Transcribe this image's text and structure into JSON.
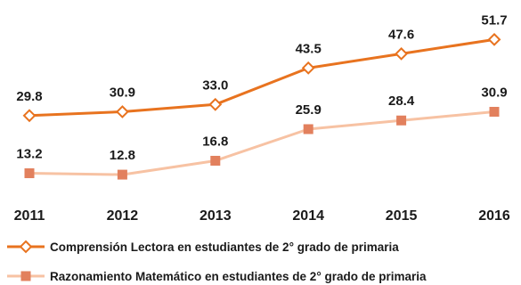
{
  "chart_data": {
    "type": "line",
    "title": "",
    "xlabel": "",
    "ylabel": "",
    "x": [
      "2011",
      "2012",
      "2013",
      "2014",
      "2015",
      "2016"
    ],
    "ylim": [
      0,
      60
    ],
    "grid": false,
    "legend_position": "bottom",
    "series": [
      {
        "name": "Comprensión Lectora en estudiantes de 2° grado de primaria",
        "values": [
          29.8,
          30.9,
          33.0,
          43.5,
          47.6,
          51.7
        ],
        "labels": [
          "29.8",
          "30.9",
          "33.0",
          "43.5",
          "47.6",
          "51.7"
        ],
        "color": "#e8731f",
        "marker": "diamond"
      },
      {
        "name": "Razonamiento Matemático en estudiantes de 2° grado de primaria",
        "values": [
          13.2,
          12.8,
          16.8,
          25.9,
          28.4,
          30.9
        ],
        "labels": [
          "13.2",
          "12.8",
          "16.8",
          "25.9",
          "28.4",
          "30.9"
        ],
        "color": "#f7c2a3",
        "marker_color": "#e2805d",
        "marker": "square"
      }
    ]
  }
}
